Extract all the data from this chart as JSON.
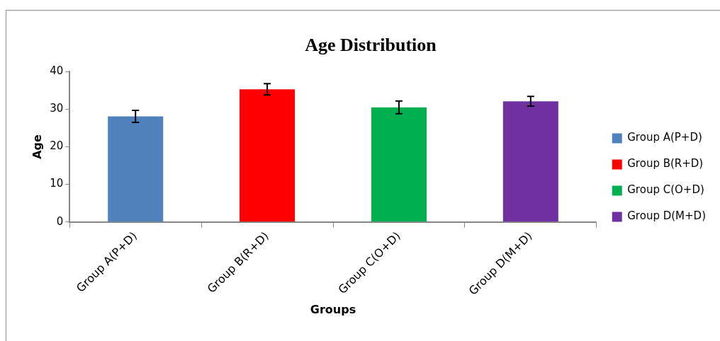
{
  "chart_data": {
    "type": "bar",
    "title": "Age Distribution",
    "xlabel": "Groups",
    "ylabel": "Age",
    "categories": [
      "Group A(P+D)",
      "Group B(R+D)",
      "Group C(O+D)",
      "Group D(M+D)"
    ],
    "series": [
      {
        "name": "Group A(P+D)",
        "color": "#4f81bd",
        "values": [
          28.1,
          null,
          null,
          null
        ],
        "errors": [
          1.6,
          null,
          null,
          null
        ]
      },
      {
        "name": "Group B(R+D)",
        "color": "#ff0000",
        "values": [
          null,
          35.3,
          null,
          null
        ],
        "errors": [
          null,
          1.5,
          null,
          null
        ]
      },
      {
        "name": "Group C(O+D)",
        "color": "#00b050",
        "values": [
          null,
          null,
          30.5,
          null
        ],
        "errors": [
          null,
          null,
          1.7,
          null
        ]
      },
      {
        "name": "Group D(M+D)",
        "color": "#7030a0",
        "values": [
          null,
          null,
          null,
          32.1
        ],
        "errors": [
          null,
          null,
          null,
          1.3
        ]
      }
    ],
    "ylim": [
      0,
      40
    ],
    "yticks": [
      0,
      10,
      20,
      30,
      40
    ],
    "grid": false,
    "legend": "right"
  }
}
